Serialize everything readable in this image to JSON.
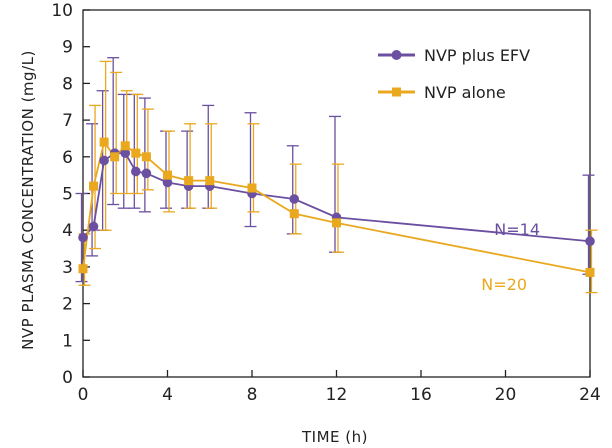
{
  "chart_data": {
    "type": "line",
    "xlabel": "TIME (h)",
    "ylabel": "NVP PLASMA CONCENTRATION (mg/L)",
    "xlim": [
      0,
      24
    ],
    "ylim": [
      0,
      10
    ],
    "xticks": [
      0,
      4,
      8,
      12,
      16,
      20,
      24
    ],
    "yticks": [
      0,
      1,
      2,
      3,
      4,
      5,
      6,
      7,
      8,
      9,
      10
    ],
    "grid": false,
    "legend_position": "top-right",
    "series": [
      {
        "name": "NVP plus EFV",
        "color": "#6b4fa0",
        "marker": "circle",
        "annotation": "N=14",
        "x": [
          0,
          0.5,
          1,
          1.5,
          2,
          2.5,
          3,
          4,
          5,
          6,
          8,
          10,
          12,
          24
        ],
        "y": [
          3.8,
          4.1,
          5.9,
          6.1,
          6.1,
          5.6,
          5.55,
          5.3,
          5.2,
          5.2,
          5.0,
          4.85,
          4.35,
          3.7
        ],
        "err_low": [
          2.6,
          3.3,
          4.0,
          4.7,
          4.6,
          4.6,
          4.5,
          4.6,
          4.6,
          4.6,
          4.1,
          3.9,
          3.4,
          2.8
        ],
        "err_high": [
          5.0,
          6.9,
          7.8,
          8.7,
          7.7,
          7.7,
          7.6,
          6.7,
          6.7,
          7.4,
          7.2,
          6.3,
          7.1,
          5.5
        ]
      },
      {
        "name": "NVP alone",
        "color": "#e9a81d",
        "marker": "square",
        "annotation": "N=20",
        "x": [
          0,
          0.5,
          1,
          1.5,
          2,
          2.5,
          3,
          4,
          5,
          6,
          8,
          10,
          12,
          24
        ],
        "y": [
          2.95,
          5.2,
          6.4,
          6.0,
          6.3,
          6.1,
          6.0,
          5.5,
          5.35,
          5.35,
          5.15,
          4.45,
          4.2,
          2.85
        ],
        "err_low": [
          2.5,
          3.5,
          4.0,
          5.0,
          5.0,
          5.0,
          5.1,
          4.5,
          4.6,
          4.6,
          4.5,
          3.9,
          3.4,
          2.3
        ],
        "err_high": [
          3.9,
          7.4,
          8.6,
          8.3,
          7.8,
          7.7,
          7.3,
          6.7,
          6.9,
          6.9,
          6.9,
          5.8,
          5.8,
          4.0
        ]
      }
    ]
  }
}
